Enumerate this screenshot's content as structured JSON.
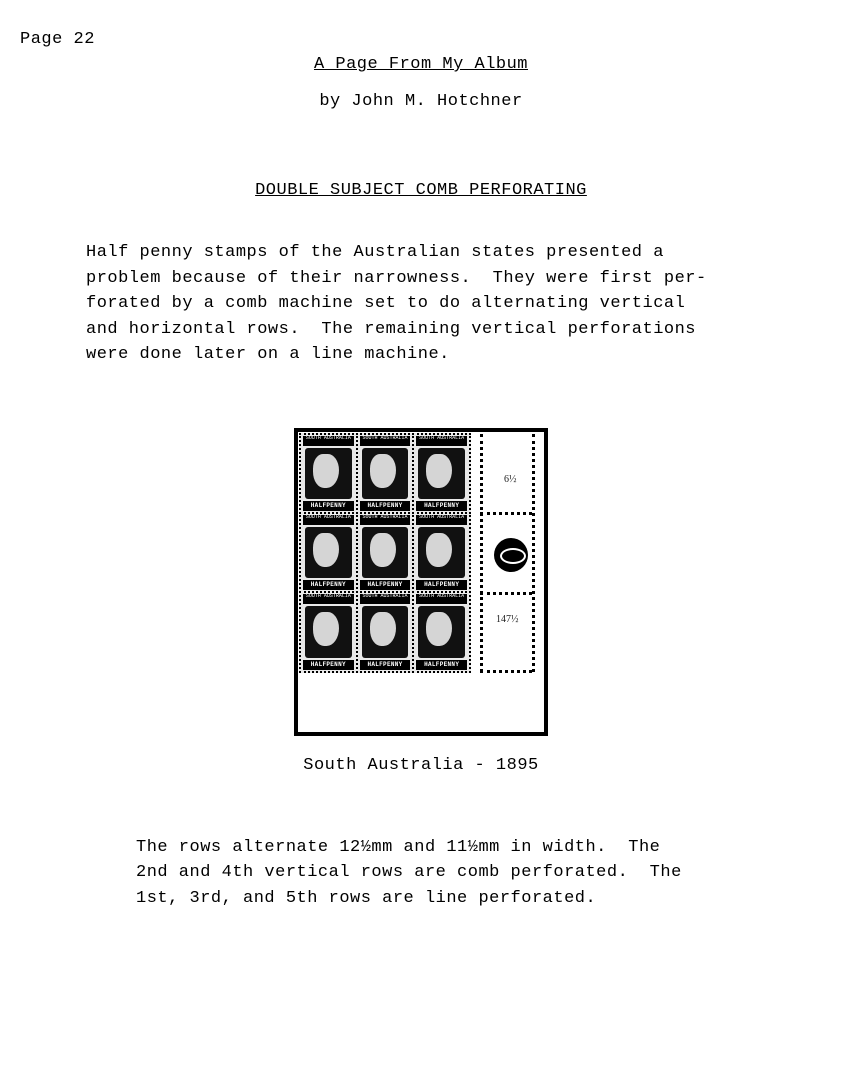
{
  "page_number": "Page 22",
  "title": "A Page From My Album",
  "byline": "by  John M. Hotchner",
  "subtitle": "DOUBLE SUBJECT COMB PERFORATING",
  "paragraph1": "Half penny stamps of the Australian states presented a\nproblem because of their narrowness.  They were first per-\nforated by a comb machine set to do alternating vertical\nand horizontal rows.  The remaining vertical perforations\nwere done later on a line machine.",
  "figure": {
    "caption": "South Australia - 1895",
    "stamp_label_top": "SOUTH\nAUSTRALIA",
    "stamp_label_bottom": "HALFPENNY",
    "grid_rows": 3,
    "grid_cols": 3
  },
  "paragraph2": "The rows alternate 12½mm and 11½mm in width.  The\n2nd and 4th vertical rows are comb perforated.  The\n1st, 3rd, and 5th rows are line perforated.",
  "colors": {
    "text": "#000000",
    "background": "#ffffff"
  }
}
